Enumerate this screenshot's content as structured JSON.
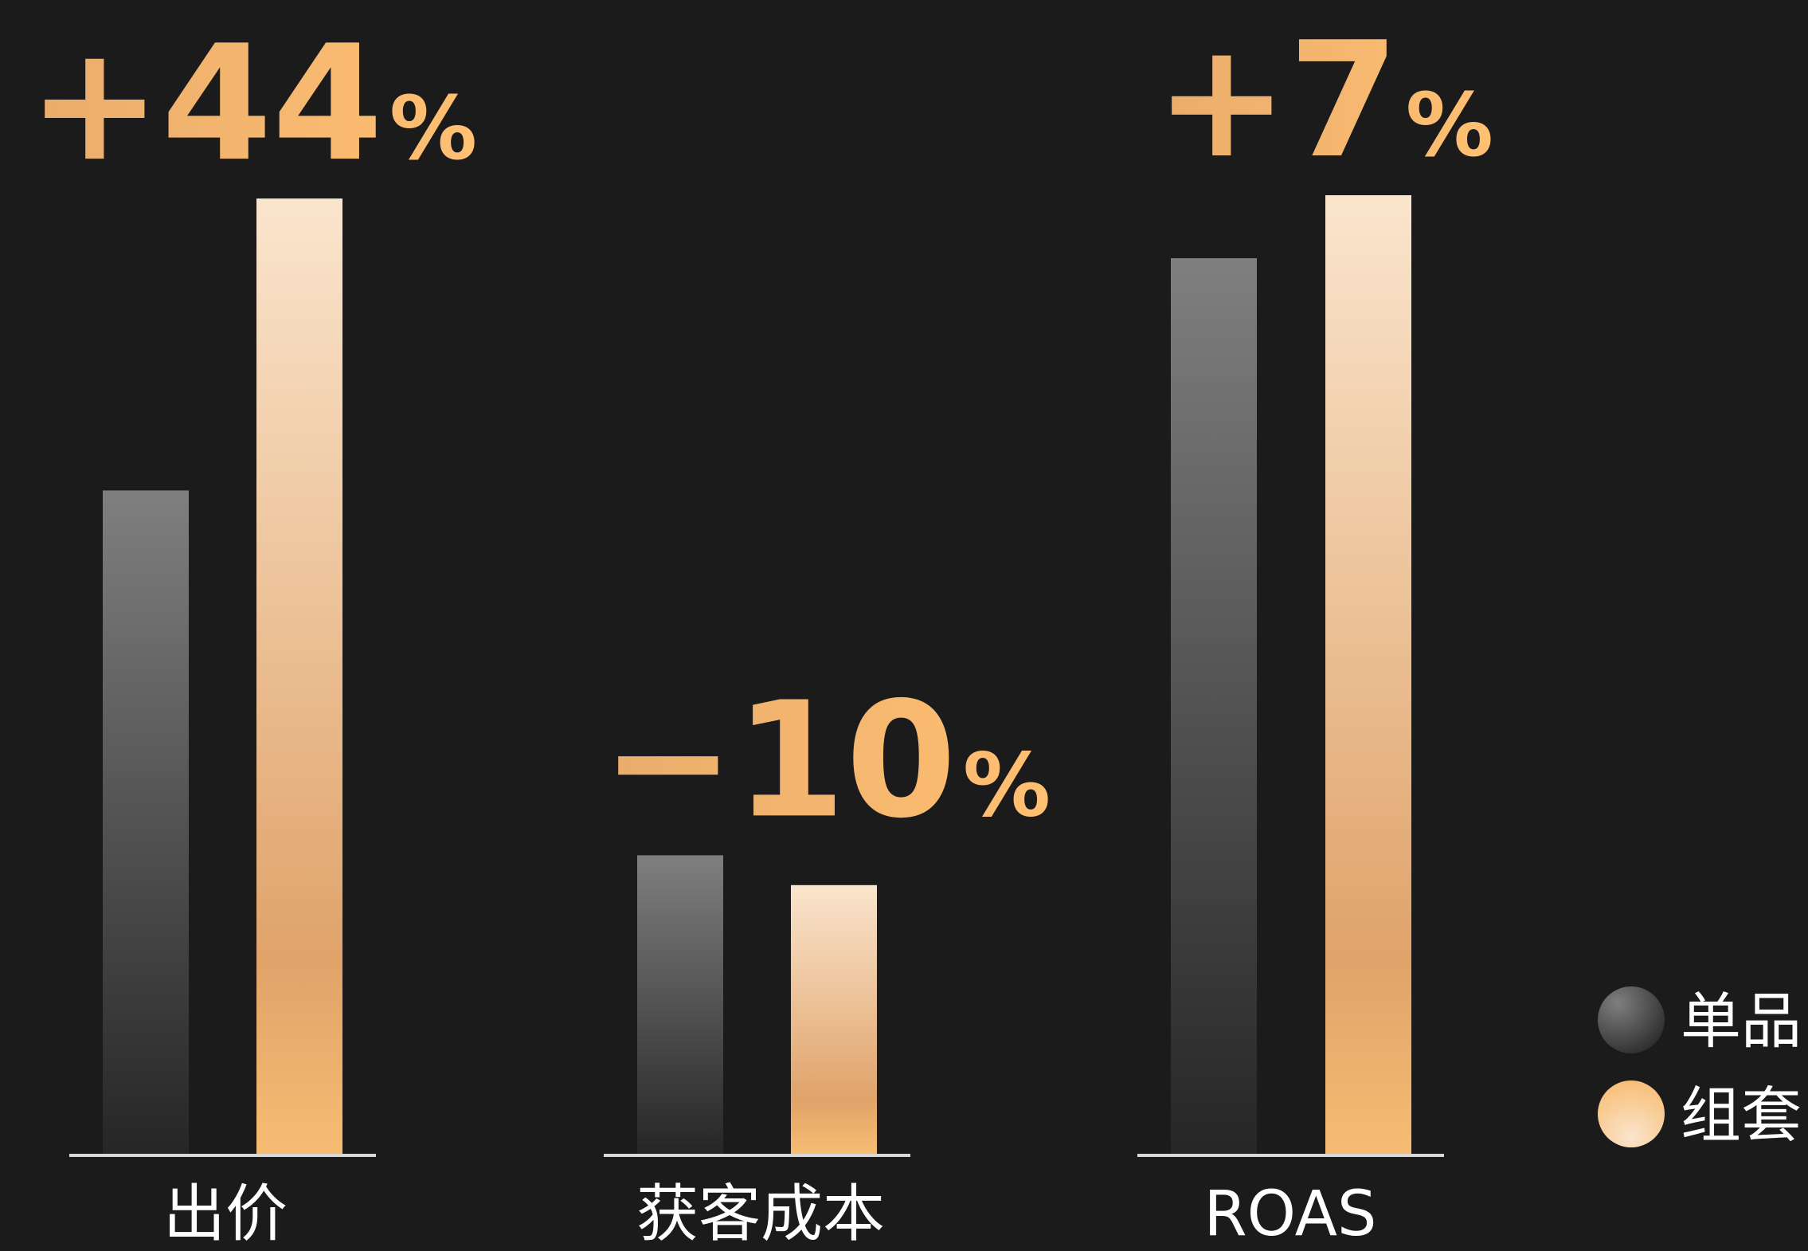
{
  "colors": {
    "background": "#1b1b1b",
    "gray_top": "#7f7f7f",
    "gray_bottom": "#262626",
    "orange_top": "#fae5cd",
    "orange_mid": "#e0a36a",
    "orange_bottom": "#f7bc72",
    "change_label_left": "#e9ac6c",
    "change_label_right": "#ffc072",
    "axis": "#d9d9d9",
    "text": "#ffffff"
  },
  "chart_data": {
    "type": "bar",
    "categories": [
      "出价",
      "获客成本",
      "ROAS"
    ],
    "series": [
      {
        "name": "单品",
        "values": [
          100,
          45,
          135
        ],
        "color": "gray"
      },
      {
        "name": "组套",
        "values": [
          144,
          40.5,
          144.5
        ],
        "color": "orange"
      }
    ],
    "change_labels": [
      {
        "sign": "+",
        "number": "44",
        "unit": "%"
      },
      {
        "sign": "−",
        "number": "10",
        "unit": "%"
      },
      {
        "sign": "+",
        "number": "7",
        "unit": "%"
      }
    ],
    "legend": {
      "position": "bottom-right"
    },
    "ylim": [
      0,
      144.5
    ],
    "title": "",
    "xlabel": "",
    "ylabel": "",
    "grid": false
  }
}
